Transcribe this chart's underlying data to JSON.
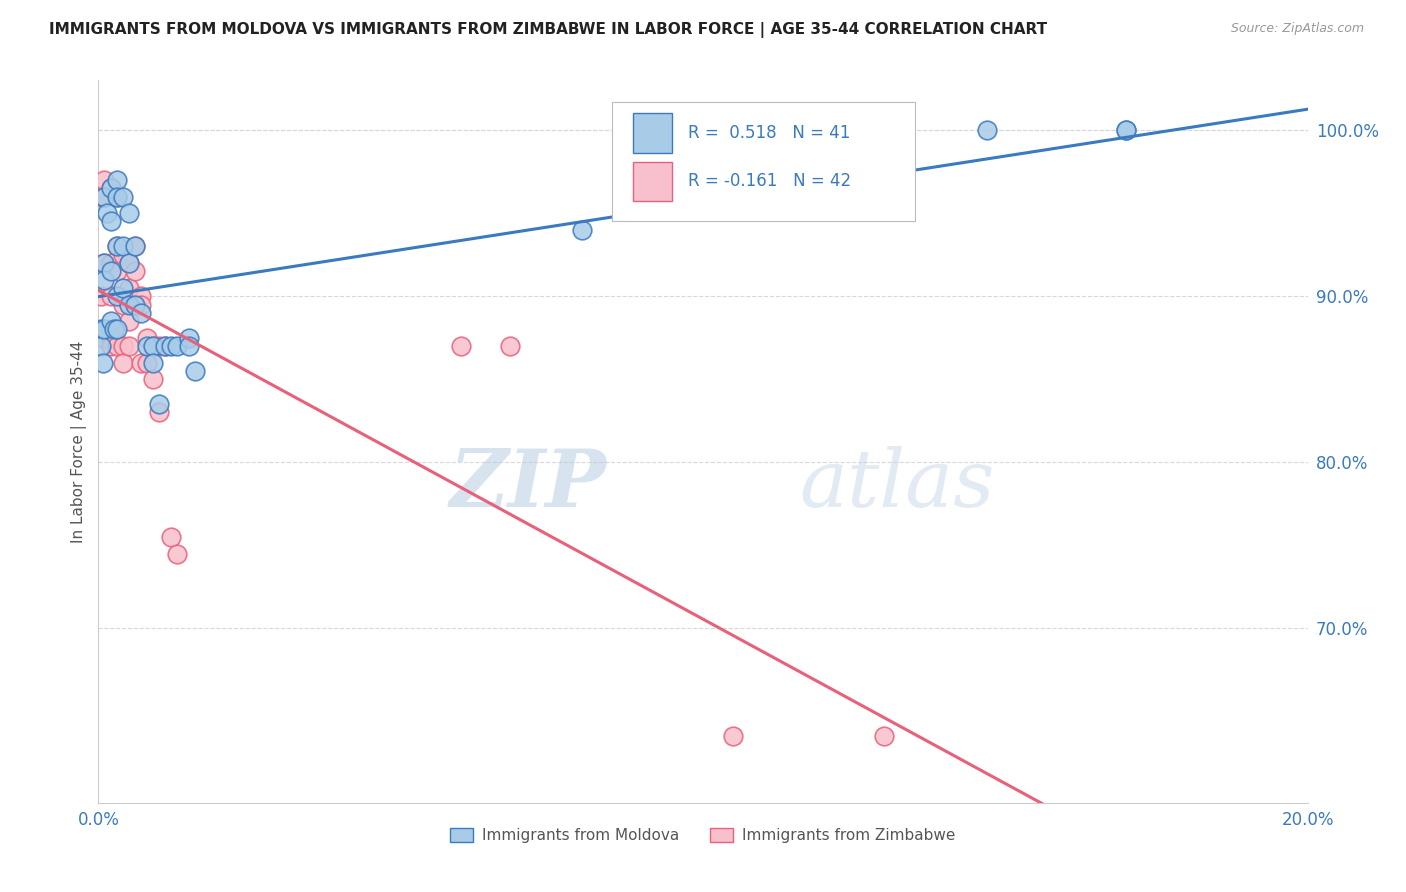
{
  "title": "IMMIGRANTS FROM MOLDOVA VS IMMIGRANTS FROM ZIMBABWE IN LABOR FORCE | AGE 35-44 CORRELATION CHART",
  "source": "Source: ZipAtlas.com",
  "ylabel": "In Labor Force | Age 35-44",
  "r_moldova": 0.518,
  "n_moldova": 41,
  "r_zimbabwe": -0.161,
  "n_zimbabwe": 42,
  "moldova_color": "#a8cce8",
  "zimbabwe_color": "#f7c0cc",
  "moldova_line_color": "#3a7abf",
  "zimbabwe_line_color": "#e8607a",
  "legend_label_moldova": "Immigrants from Moldova",
  "legend_label_zimbabwe": "Immigrants from Zimbabwe",
  "xmin": 0.0,
  "xmax": 0.2,
  "ymin": 0.595,
  "ymax": 1.03,
  "yticks": [
    0.7,
    0.8,
    0.9,
    1.0
  ],
  "ytick_labels": [
    "70.0%",
    "80.0%",
    "90.0%",
    "100.0%"
  ],
  "xticks": [
    0.0,
    0.04,
    0.08,
    0.12,
    0.16,
    0.2
  ],
  "xtick_labels": [
    "0.0%",
    "",
    "",
    "",
    "",
    "20.0%"
  ],
  "moldova_x": [
    0.0005,
    0.0005,
    0.0008,
    0.001,
    0.001,
    0.001,
    0.001,
    0.0015,
    0.002,
    0.002,
    0.002,
    0.002,
    0.0025,
    0.003,
    0.003,
    0.003,
    0.003,
    0.003,
    0.004,
    0.004,
    0.004,
    0.005,
    0.005,
    0.005,
    0.006,
    0.006,
    0.007,
    0.008,
    0.009,
    0.009,
    0.01,
    0.011,
    0.012,
    0.013,
    0.015,
    0.015,
    0.016,
    0.08,
    0.147,
    0.17,
    0.17
  ],
  "moldova_y": [
    0.88,
    0.87,
    0.86,
    0.96,
    0.92,
    0.91,
    0.88,
    0.95,
    0.965,
    0.945,
    0.915,
    0.885,
    0.88,
    0.97,
    0.96,
    0.93,
    0.9,
    0.88,
    0.96,
    0.93,
    0.905,
    0.95,
    0.92,
    0.895,
    0.93,
    0.895,
    0.89,
    0.87,
    0.87,
    0.86,
    0.835,
    0.87,
    0.87,
    0.87,
    0.875,
    0.87,
    0.855,
    0.94,
    1.0,
    1.0,
    1.0
  ],
  "zimbabwe_x": [
    0.0005,
    0.0005,
    0.001,
    0.001,
    0.001,
    0.001,
    0.002,
    0.002,
    0.002,
    0.002,
    0.002,
    0.003,
    0.003,
    0.003,
    0.003,
    0.004,
    0.004,
    0.004,
    0.004,
    0.005,
    0.005,
    0.005,
    0.005,
    0.006,
    0.006,
    0.006,
    0.007,
    0.007,
    0.007,
    0.008,
    0.008,
    0.009,
    0.009,
    0.01,
    0.01,
    0.011,
    0.012,
    0.013,
    0.06,
    0.068,
    0.105,
    0.13
  ],
  "zimbabwe_y": [
    0.96,
    0.9,
    0.97,
    0.96,
    0.92,
    0.875,
    0.965,
    0.92,
    0.9,
    0.875,
    0.87,
    0.96,
    0.93,
    0.915,
    0.87,
    0.925,
    0.895,
    0.87,
    0.86,
    0.92,
    0.905,
    0.885,
    0.87,
    0.93,
    0.915,
    0.895,
    0.9,
    0.895,
    0.86,
    0.875,
    0.86,
    0.87,
    0.85,
    0.87,
    0.83,
    0.87,
    0.755,
    0.745,
    0.87,
    0.87,
    0.635,
    0.635
  ],
  "watermark_zip": "ZIP",
  "watermark_atlas": "atlas",
  "background_color": "#ffffff",
  "grid_color": "#d8d8d8"
}
